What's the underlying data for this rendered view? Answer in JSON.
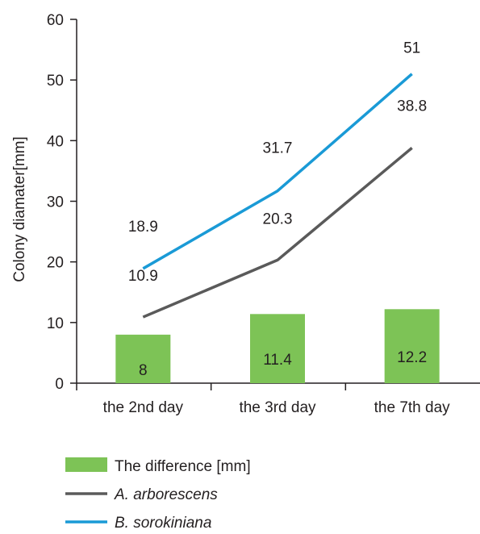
{
  "chart_data": {
    "type": "bar+line",
    "categories": [
      "the 2nd day",
      "the 3rd day",
      "the 7th day"
    ],
    "ylabel": "Colony diamater[mm]",
    "ylim": [
      0,
      60
    ],
    "yticks": [
      0,
      10,
      20,
      30,
      40,
      50,
      60
    ],
    "grid": false,
    "legend_position": "bottom",
    "bars": {
      "name": "The difference [mm]",
      "color": "#7dc356",
      "values": [
        8,
        11.4,
        12.2
      ],
      "labels": [
        "8",
        "11.4",
        "12.2"
      ]
    },
    "series": [
      {
        "name": "A. arborescens",
        "color": "#5a5a5a",
        "values": [
          10.9,
          20.3,
          38.8
        ],
        "labels": [
          "10.9",
          "20.3",
          "38.8"
        ]
      },
      {
        "name": "B. sorokiniana",
        "color": "#1a9ad6",
        "values": [
          18.9,
          31.7,
          51
        ],
        "labels": [
          "18.9",
          "31.7",
          "51"
        ]
      }
    ]
  }
}
